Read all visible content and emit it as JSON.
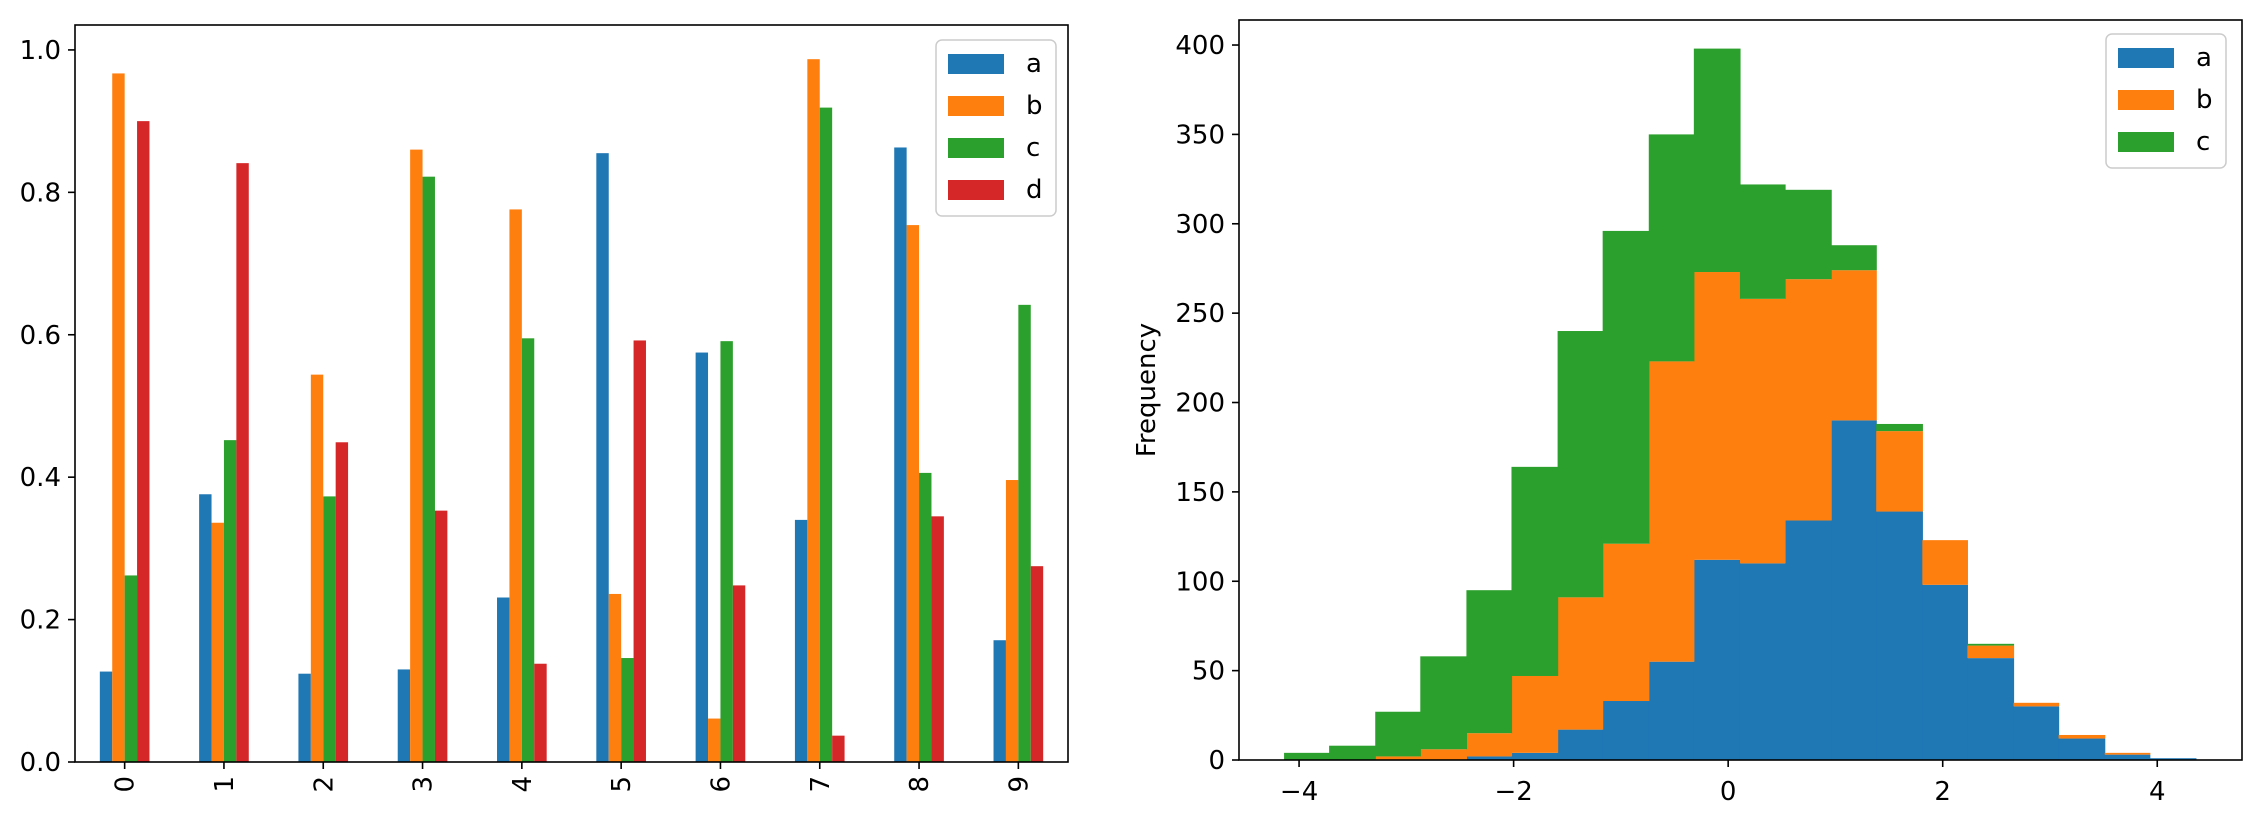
{
  "chart_data": [
    {
      "type": "bar",
      "categories": [
        "0",
        "1",
        "2",
        "3",
        "4",
        "5",
        "6",
        "7",
        "8",
        "9"
      ],
      "series": [
        {
          "name": "a",
          "color": "#1f77b4",
          "values": [
            0.127,
            0.376,
            0.124,
            0.13,
            0.231,
            0.855,
            0.575,
            0.34,
            0.863,
            0.171
          ]
        },
        {
          "name": "b",
          "color": "#ff7f0e",
          "values": [
            0.967,
            0.336,
            0.544,
            0.86,
            0.776,
            0.236,
            0.061,
            0.987,
            0.754,
            0.396
          ]
        },
        {
          "name": "c",
          "color": "#2ca02c",
          "values": [
            0.262,
            0.452,
            0.373,
            0.822,
            0.595,
            0.146,
            0.591,
            0.919,
            0.406,
            0.642
          ]
        },
        {
          "name": "d",
          "color": "#d62728",
          "values": [
            0.9,
            0.841,
            0.449,
            0.353,
            0.138,
            0.592,
            0.248,
            0.037,
            0.345,
            0.275
          ]
        }
      ],
      "ylim": [
        0,
        1.035
      ],
      "yticks": [
        0.0,
        0.2,
        0.4,
        0.6,
        0.8,
        1.0
      ],
      "ytick_labels": [
        "0.0",
        "0.2",
        "0.4",
        "0.6",
        "0.8",
        "1.0"
      ],
      "xlabel": "",
      "ylabel": "",
      "title": "",
      "legend": "top-right"
    },
    {
      "type": "histogram-stacked",
      "bin_edges": [
        -4.14,
        -3.72,
        -3.29,
        -2.87,
        -2.44,
        -2.02,
        -1.59,
        -1.17,
        -0.74,
        -0.32,
        0.11,
        0.53,
        0.96,
        1.38,
        1.81,
        2.23,
        2.66,
        3.08,
        3.51,
        3.93,
        4.36
      ],
      "series": [
        {
          "name": "a",
          "color": "#1f77b4",
          "values": [
            0,
            0,
            0,
            0,
            2,
            4,
            17,
            33,
            55,
            112,
            110,
            134,
            190,
            139,
            98,
            57,
            30,
            12,
            3,
            1
          ]
        },
        {
          "name": "b",
          "color": "#ff7f0e",
          "values": [
            0,
            0,
            2,
            6,
            13,
            43,
            74,
            88,
            168,
            161,
            148,
            135,
            84,
            45,
            25,
            7,
            2,
            2,
            1,
            0
          ]
        },
        {
          "name": "c",
          "color": "#2ca02c",
          "values": [
            4,
            8,
            25,
            52,
            80,
            117,
            149,
            175,
            127,
            125,
            64,
            50,
            14,
            4,
            0,
            1,
            0,
            0,
            0,
            0
          ]
        }
      ],
      "xlim": [
        -4.56,
        4.79
      ],
      "ylim": [
        0,
        414
      ],
      "xticks": [
        -4,
        -2,
        0,
        2,
        4
      ],
      "xtick_labels": [
        "−4",
        "−2",
        "0",
        "2",
        "4"
      ],
      "yticks": [
        0,
        50,
        100,
        150,
        200,
        250,
        300,
        350,
        400
      ],
      "ytick_labels": [
        "0",
        "50",
        "100",
        "150",
        "200",
        "250",
        "300",
        "350",
        "400"
      ],
      "xlabel": "",
      "ylabel": "Frequency",
      "title": "",
      "legend": "top-right"
    }
  ]
}
